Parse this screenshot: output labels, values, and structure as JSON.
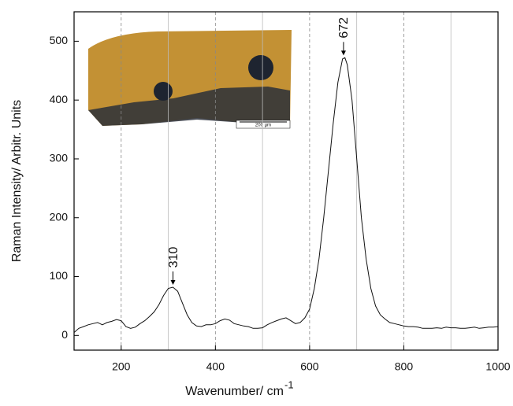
{
  "chart_data": {
    "type": "line",
    "ylabel": "Raman Intensity/ Arbitr. Units",
    "xlabel": "Wavenumber/ cm",
    "xlabel_exponent": "-1",
    "xlim": [
      100,
      1000
    ],
    "ylim": [
      -25,
      550
    ],
    "xticks": [
      200,
      400,
      600,
      800,
      1000
    ],
    "yticks": [
      0,
      100,
      200,
      300,
      400,
      500
    ],
    "xgrid": [
      200,
      300,
      400,
      500,
      600,
      700,
      800,
      900
    ],
    "inset_label": "200 µm",
    "annotations": [
      {
        "text": "310",
        "x": 310,
        "y": 82
      },
      {
        "text": "672",
        "x": 672,
        "y": 472
      }
    ],
    "series": [
      {
        "color": "#111111",
        "x": [
          100,
          110,
          120,
          130,
          140,
          150,
          160,
          170,
          180,
          190,
          200,
          210,
          220,
          230,
          240,
          250,
          260,
          270,
          280,
          290,
          300,
          310,
          320,
          330,
          340,
          350,
          360,
          370,
          380,
          390,
          400,
          410,
          420,
          430,
          440,
          450,
          460,
          470,
          480,
          490,
          500,
          510,
          520,
          530,
          540,
          550,
          560,
          570,
          580,
          590,
          600,
          610,
          620,
          630,
          640,
          650,
          660,
          670,
          675,
          680,
          690,
          700,
          710,
          720,
          730,
          740,
          750,
          760,
          770,
          780,
          790,
          800,
          810,
          820,
          830,
          840,
          850,
          860,
          870,
          880,
          890,
          900,
          910,
          920,
          930,
          940,
          950,
          960,
          970,
          980,
          990,
          1000
        ],
        "values": [
          5,
          12,
          15,
          18,
          20,
          22,
          18,
          22,
          24,
          27,
          25,
          15,
          12,
          14,
          20,
          25,
          32,
          40,
          52,
          68,
          80,
          82,
          75,
          55,
          35,
          22,
          16,
          15,
          18,
          18,
          20,
          25,
          28,
          26,
          20,
          18,
          16,
          15,
          12,
          12,
          13,
          18,
          22,
          25,
          28,
          30,
          25,
          20,
          22,
          30,
          45,
          80,
          130,
          200,
          280,
          360,
          430,
          470,
          472,
          460,
          400,
          300,
          200,
          130,
          80,
          50,
          35,
          28,
          22,
          20,
          18,
          16,
          15,
          15,
          14,
          12,
          12,
          12,
          13,
          12,
          14,
          13,
          13,
          12,
          12,
          13,
          14,
          12,
          13,
          14,
          14,
          15
        ]
      }
    ]
  }
}
